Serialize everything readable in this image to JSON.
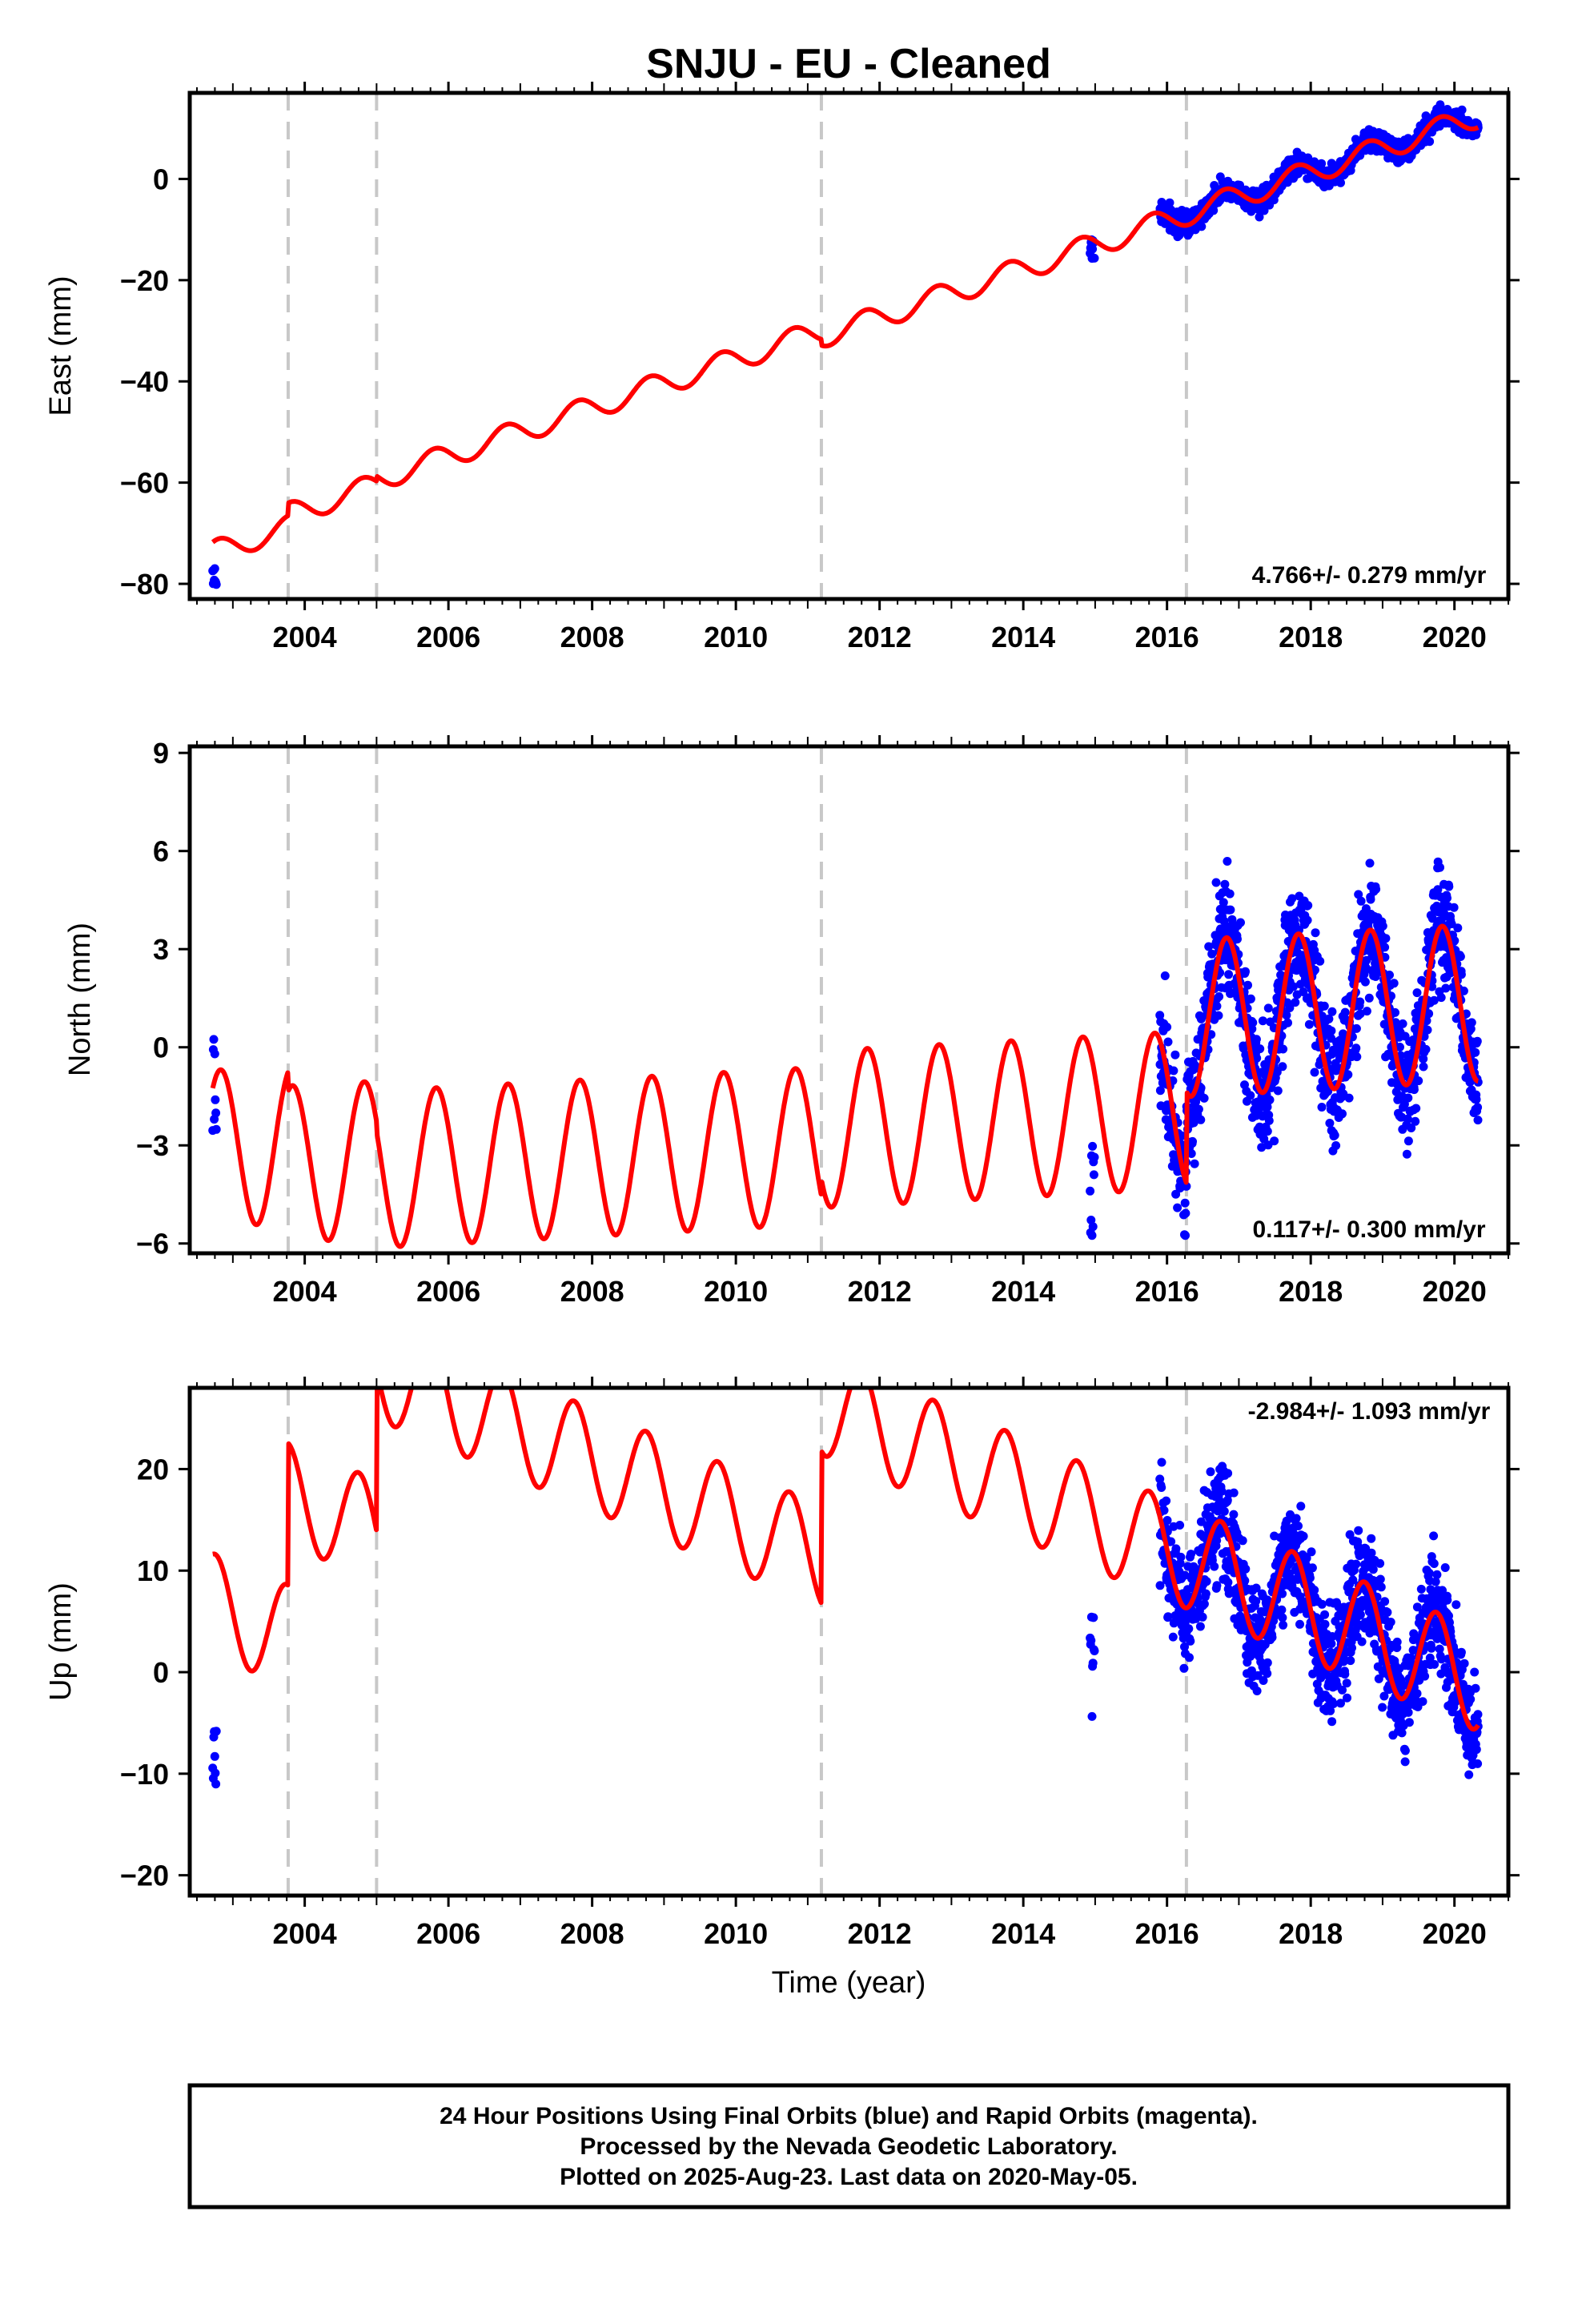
{
  "title": "SNJU  - EU - Cleaned",
  "xlabel": "Time (year)",
  "footer": {
    "line1": "24 Hour Positions Using Final Orbits (blue) and Rapid Orbits (magenta).",
    "line2": "Processed by the Nevada Geodetic Laboratory.",
    "line3": "Plotted on 2025-Aug-23. Last data on 2020-May-05."
  },
  "colors": {
    "observations": "#0000ff",
    "model": "#ff0000",
    "breaks": "#c8c8c8",
    "frame": "#000000"
  },
  "chart_data": [
    {
      "type": "scatter",
      "id": "east",
      "ylabel": "East (mm)",
      "rate_label": "4.766+/- 0.279 mm/yr",
      "xlim": [
        2002.4,
        2020.75
      ],
      "ylim": [
        -83,
        17
      ],
      "x_ticks": [
        2004,
        2006,
        2008,
        2010,
        2012,
        2014,
        2016,
        2018,
        2020
      ],
      "y_ticks": [
        0,
        -20,
        -40,
        -60,
        -80
      ],
      "step_breaks": [
        2003.77,
        2005.0,
        2011.19,
        2016.27
      ],
      "model": {
        "rate": 4.766,
        "ref_year": 2020.3,
        "ref_value": 10.0,
        "annual_amp": 2.3,
        "annual_phase": 0.55,
        "offsets": [
          {
            "year": 2003.77,
            "step": 2.5
          },
          {
            "year": 2005.0,
            "step": 1.0
          },
          {
            "year": 2011.19,
            "step": -1.2
          },
          {
            "year": 2016.27,
            "step": 0
          }
        ]
      },
      "observation_clusters": [
        {
          "x_start": 2002.72,
          "x_end": 2002.77,
          "count": 8,
          "y_min": -81,
          "y_max": -76,
          "scatter": 1.5
        },
        {
          "x_start": 2014.93,
          "x_end": 2014.99,
          "count": 10,
          "y_min": -16,
          "y_max": -11,
          "scatter": 1.5
        },
        {
          "x_start": 2015.9,
          "x_end": 2020.33,
          "count": 1200,
          "scatter": 1.5
        }
      ]
    },
    {
      "type": "scatter",
      "id": "north",
      "ylabel": "North (mm)",
      "rate_label": "0.117+/- 0.300 mm/yr",
      "xlim": [
        2002.4,
        2020.75
      ],
      "ylim": [
        -6.3,
        9.2
      ],
      "x_ticks": [
        2004,
        2006,
        2008,
        2010,
        2012,
        2014,
        2016,
        2018,
        2020
      ],
      "y_ticks": [
        9,
        6,
        3,
        0,
        -3,
        -6
      ],
      "step_breaks": [
        2003.77,
        2005.0,
        2011.19,
        2016.27
      ],
      "model": {
        "rate": 0.117,
        "ref_year": 2020.3,
        "ref_value": -1.0,
        "annual_amp": 2.4,
        "annual_phase": 0.58,
        "offsets": [
          {
            "year": 2003.77,
            "step": -0.6
          },
          {
            "year": 2005.0,
            "step": -0.3
          },
          {
            "year": 2011.19,
            "step": 0.5
          },
          {
            "year": 2016.27,
            "step": 2.8
          }
        ]
      },
      "observation_clusters": [
        {
          "x_start": 2002.72,
          "x_end": 2002.77,
          "count": 8,
          "y_min": -2.6,
          "y_max": 1.1,
          "scatter": 1.0
        },
        {
          "x_start": 2014.93,
          "x_end": 2014.99,
          "count": 10,
          "y_min": -6.0,
          "y_max": -3.0,
          "scatter": 1.0
        },
        {
          "x_start": 2015.9,
          "x_end": 2020.33,
          "count": 1200,
          "scatter": 1.3
        }
      ]
    },
    {
      "type": "scatter",
      "id": "up",
      "ylabel": "Up (mm)",
      "rate_label": "-2.984+/- 1.093 mm/yr",
      "xlim": [
        2002.4,
        2020.75
      ],
      "ylim": [
        -22,
        28
      ],
      "x_ticks": [
        2004,
        2006,
        2008,
        2010,
        2012,
        2014,
        2016,
        2018,
        2020
      ],
      "y_ticks": [
        20,
        10,
        0,
        -10,
        -20
      ],
      "step_breaks": [
        2003.77,
        2005.0,
        2011.19,
        2016.27
      ],
      "model": {
        "rate": -2.984,
        "ref_year": 2020.3,
        "ref_value": -5.5,
        "annual_amp": 5.0,
        "annual_phase": 0.5,
        "offsets": [
          {
            "year": 2003.77,
            "step": 14.0
          },
          {
            "year": 2005.0,
            "step": 16.0
          },
          {
            "year": 2011.19,
            "step": 15.0
          },
          {
            "year": 2016.27,
            "step": 0
          }
        ]
      },
      "observation_clusters": [
        {
          "x_start": 2002.72,
          "x_end": 2002.77,
          "count": 8,
          "y_min": -11.5,
          "y_max": -5.0,
          "scatter": 2.0
        },
        {
          "x_start": 2014.93,
          "x_end": 2014.99,
          "count": 10,
          "y_min": -5.5,
          "y_max": 5.5,
          "scatter": 2.0
        },
        {
          "x_start": 2015.9,
          "x_end": 2020.33,
          "count": 1200,
          "scatter": 3.8
        }
      ]
    }
  ]
}
